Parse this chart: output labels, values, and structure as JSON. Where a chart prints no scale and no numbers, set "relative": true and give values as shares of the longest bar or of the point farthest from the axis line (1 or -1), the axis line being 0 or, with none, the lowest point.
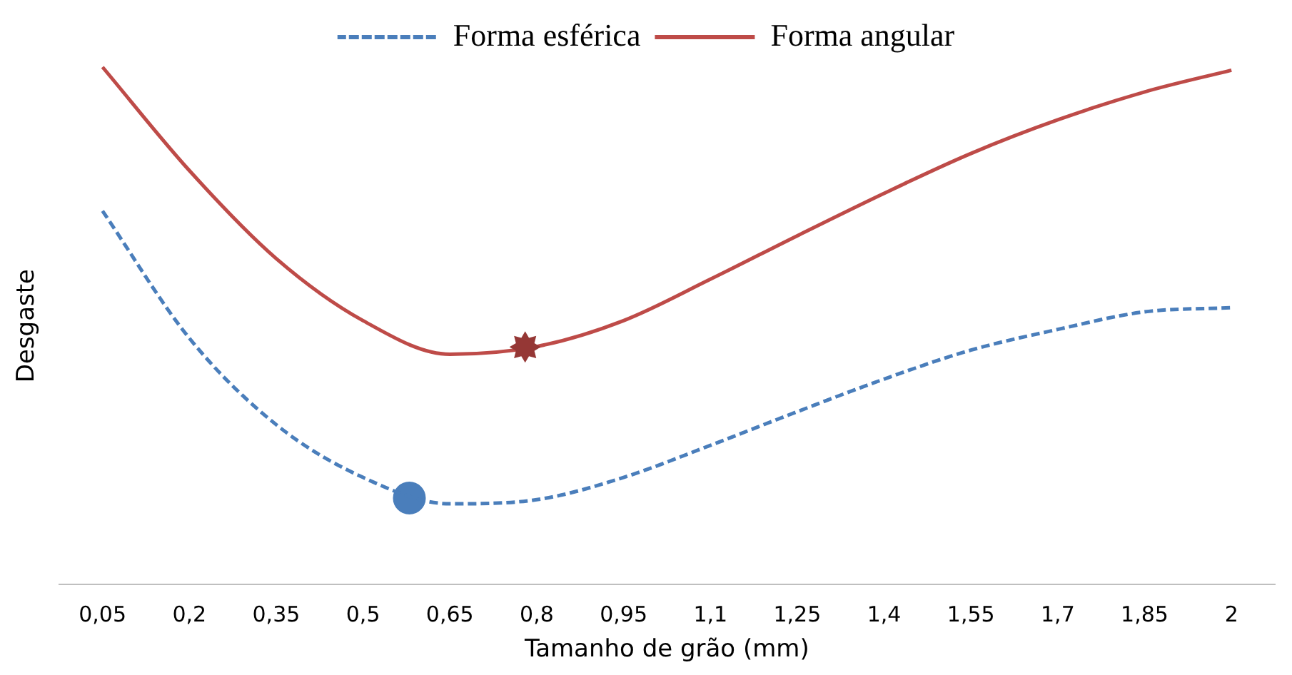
{
  "chart_data": {
    "type": "line",
    "xlabel": "Tamanho de grão (mm)",
    "ylabel": "Desgaste",
    "relative": true,
    "legend": "top",
    "grid": false,
    "marker": "none",
    "xlim": [
      -0.025,
      2.075
    ],
    "xticks": [
      {
        "value": 0.05,
        "label": "0,05"
      },
      {
        "value": 0.2,
        "label": "0,2"
      },
      {
        "value": 0.35,
        "label": "0,35"
      },
      {
        "value": 0.5,
        "label": "0,5"
      },
      {
        "value": 0.65,
        "label": "0,65"
      },
      {
        "value": 0.8,
        "label": "0,8"
      },
      {
        "value": 0.95,
        "label": "0,95"
      },
      {
        "value": 1.1,
        "label": "1,1"
      },
      {
        "value": 1.25,
        "label": "1,25"
      },
      {
        "value": 1.4,
        "label": "1,4"
      },
      {
        "value": 1.55,
        "label": "1,55"
      },
      {
        "value": 1.7,
        "label": "1,7"
      },
      {
        "value": 1.85,
        "label": "1,85"
      },
      {
        "value": 2,
        "label": "2"
      }
    ],
    "x": [
      0.05,
      0.2,
      0.35,
      0.5,
      0.65,
      0.8,
      0.95,
      1.1,
      1.25,
      1.4,
      1.55,
      1.7,
      1.85,
      2
    ],
    "series": [
      {
        "name": "Forma esférica",
        "color": "#4a7ebb",
        "line_style": "dashed",
        "values": [
          0.722,
          0.476,
          0.309,
          0.207,
          0.156,
          0.164,
          0.207,
          0.269,
          0.334,
          0.397,
          0.453,
          0.493,
          0.527,
          0.535
        ]
      },
      {
        "name": "Forma angular",
        "color": "#be4b48",
        "line_style": "solid",
        "values": [
          1.0,
          0.8,
          0.63,
          0.51,
          0.445,
          0.46,
          0.51,
          0.59,
          0.674,
          0.756,
          0.833,
          0.898,
          0.952,
          0.994
        ]
      },
      {
        "type": "scatter",
        "color": "#4a7ebb",
        "marker": "circle",
        "x": [
          0.58
        ],
        "values": [
          0.167
        ]
      },
      {
        "type": "scatter",
        "color": "#953735",
        "marker": "star",
        "x": [
          0.78
        ],
        "values": [
          0.459
        ]
      }
    ]
  }
}
